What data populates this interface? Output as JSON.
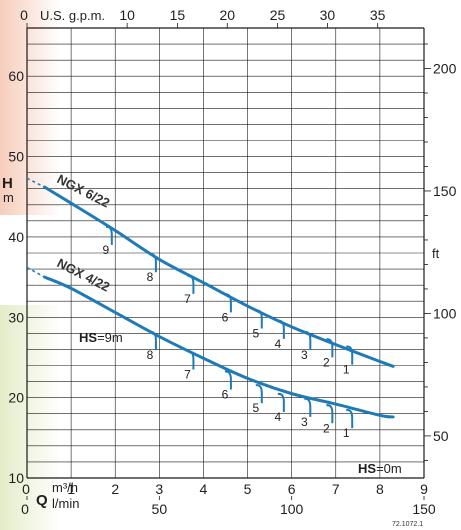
{
  "colors": {
    "curve": "#1f7ab8",
    "grid": "#1a1a1a",
    "shade_top": "#f6cdbb",
    "shade_bottom": "#e4ecc8"
  },
  "labels": {
    "us_gpm": "U.S. g.p.m.",
    "h": "H",
    "m": "m",
    "ft": "ft",
    "q": "Q",
    "m3h": "m³/h",
    "lmin": "l/min",
    "hs_prefix": "HS",
    "hs_equals": "=",
    "code": "72.1072.1"
  },
  "chart_data": {
    "type": "line",
    "xlabel": "Q",
    "ylabel": "H",
    "x_unit": "m³/h",
    "x_unit_alt": "l/min",
    "x_unit_top": "U.S. g.p.m.",
    "y_unit": "m",
    "y_unit_right": "ft",
    "xlim": [
      0,
      9
    ],
    "ylim": [
      10,
      66
    ],
    "grid": true,
    "x_ticks_m3h": [
      "0",
      "1",
      "2",
      "3",
      "4",
      "5",
      "6",
      "7",
      "8",
      "9"
    ],
    "x_ticks_lmin": [
      {
        "label": "0",
        "value": 0
      },
      {
        "label": "50",
        "value": 3
      },
      {
        "label": "100",
        "value": 6
      },
      {
        "label": "150",
        "value": 9
      }
    ],
    "x_ticks_gpm": [
      {
        "label": "0",
        "value": 0
      },
      {
        "label": "10",
        "value": 2.27
      },
      {
        "label": "15",
        "value": 3.41
      },
      {
        "label": "20",
        "value": 4.54
      },
      {
        "label": "25",
        "value": 5.68
      },
      {
        "label": "30",
        "value": 6.81
      },
      {
        "label": "35",
        "value": 7.95
      }
    ],
    "y_ticks_left": [
      {
        "label": "10",
        "value": 10
      },
      {
        "label": "20",
        "value": 20
      },
      {
        "label": "30",
        "value": 30
      },
      {
        "label": "40",
        "value": 40
      },
      {
        "label": "50",
        "value": 50
      },
      {
        "label": "60",
        "value": 60
      }
    ],
    "y_ticks_right": [
      {
        "label": "50",
        "value": 15.24
      },
      {
        "label": "100",
        "value": 30.48
      },
      {
        "label": "150",
        "value": 45.72
      },
      {
        "label": "200",
        "value": 60.96
      }
    ],
    "series": [
      {
        "name": "NGX 6/22",
        "dashed": [
          [
            0,
            47.3
          ],
          [
            0.4,
            46.2
          ]
        ],
        "points": [
          [
            0.4,
            46.2
          ],
          [
            1,
            44.2
          ],
          [
            2,
            40.8
          ],
          [
            3,
            37.2
          ],
          [
            4,
            34.3
          ],
          [
            5,
            31.4
          ],
          [
            6,
            28.8
          ],
          [
            7,
            26.6
          ],
          [
            8,
            24.5
          ],
          [
            8.3,
            23.9
          ]
        ],
        "hs_marks": [
          {
            "label": "9",
            "x": 1.9,
            "y": 41.0
          },
          {
            "label": "8",
            "x": 2.9,
            "y": 37.6
          },
          {
            "label": "7",
            "x": 3.75,
            "y": 34.9
          },
          {
            "label": "6",
            "x": 4.6,
            "y": 32.6
          },
          {
            "label": "5",
            "x": 5.3,
            "y": 30.6
          },
          {
            "label": "4",
            "x": 5.8,
            "y": 29.3
          },
          {
            "label": "3",
            "x": 6.4,
            "y": 27.9
          },
          {
            "label": "2",
            "x": 6.9,
            "y": 27.0
          },
          {
            "label": "1",
            "x": 7.35,
            "y": 26.1
          }
        ]
      },
      {
        "name": "NGX 4/22",
        "dashed": [
          [
            0,
            36.2
          ],
          [
            0.4,
            35.0
          ]
        ],
        "points": [
          [
            0.4,
            35.0
          ],
          [
            1,
            33.6
          ],
          [
            2,
            30.6
          ],
          [
            3,
            27.6
          ],
          [
            4,
            24.9
          ],
          [
            5,
            22.4
          ],
          [
            6,
            20.5
          ],
          [
            7,
            19.2
          ],
          [
            8,
            17.8
          ],
          [
            8.3,
            17.6
          ]
        ],
        "hs_marks": [
          {
            "label": "8",
            "x": 2.9,
            "y": 27.9
          },
          {
            "label": "7",
            "x": 3.75,
            "y": 25.5
          },
          {
            "label": "6",
            "x": 4.6,
            "y": 23.0
          },
          {
            "label": "5",
            "x": 5.3,
            "y": 21.3
          },
          {
            "label": "4",
            "x": 5.8,
            "y": 20.2
          },
          {
            "label": "3",
            "x": 6.4,
            "y": 19.6
          },
          {
            "label": "2",
            "x": 6.9,
            "y": 18.8
          },
          {
            "label": "1",
            "x": 7.35,
            "y": 18.2
          }
        ]
      }
    ],
    "annotations": [
      {
        "prefix": "HS",
        "value": "9m"
      },
      {
        "prefix": "HS",
        "value": "0m"
      }
    ]
  }
}
